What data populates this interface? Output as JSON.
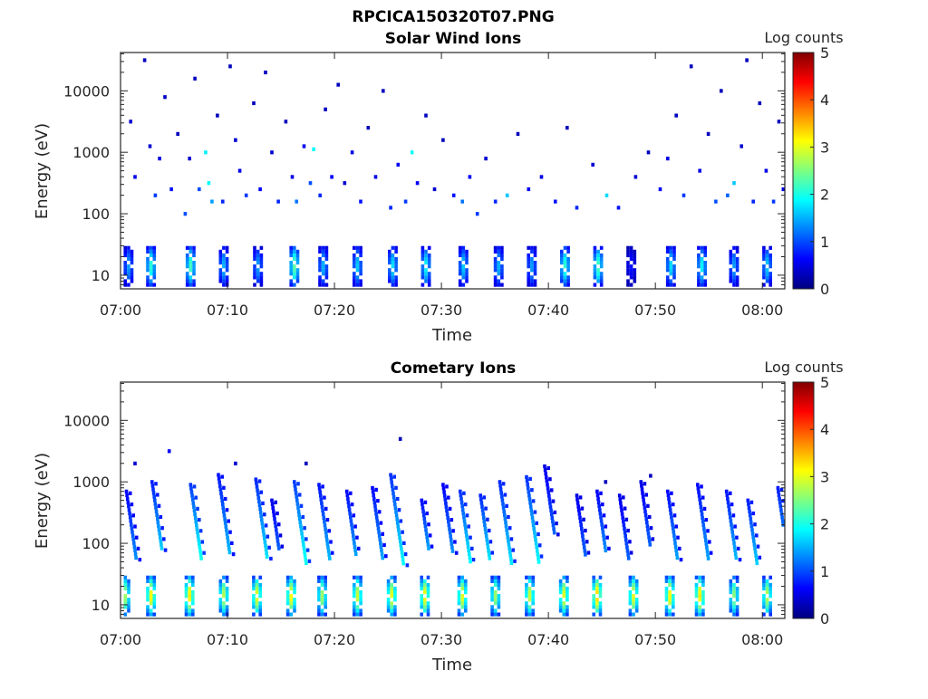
{
  "figure_title": "RPCICA150320T07.PNG",
  "chart_data": [
    {
      "type": "heatmap",
      "title": "Solar Wind Ions",
      "xlabel": "Time",
      "ylabel": "Energy (eV)",
      "xlim_minutes_after_0700": [
        0,
        62.1
      ],
      "ylim": [
        6,
        42000
      ],
      "yscale": "log",
      "xticks": [
        "07:00",
        "07:10",
        "07:20",
        "07:30",
        "07:40",
        "07:50",
        "08:00"
      ],
      "yticks": [
        "10",
        "100",
        "1000",
        "10000"
      ],
      "colorbar": {
        "label": "Log counts",
        "range": [
          0,
          5
        ],
        "ticks": [
          "0",
          "1",
          "2",
          "3",
          "4",
          "5"
        ],
        "colormap": "jet"
      },
      "low_energy_bursts": {
        "energy_range_eV": [
          7,
          28
        ],
        "times_min": [
          0.6,
          2.7,
          6.4,
          9.5,
          12.7,
          16.1,
          18.8,
          22.0,
          25.3,
          28.4,
          31.9,
          35.2,
          38.3,
          41.4,
          44.5,
          47.6,
          51.3,
          54.2,
          57.2,
          60.3
        ],
        "peak_log_counts": [
          1.2,
          1.8,
          1.9,
          1.3,
          1.2,
          2.0,
          1.3,
          1.4,
          1.5,
          1.6,
          1.4,
          1.3,
          1.2,
          1.8,
          1.9,
          0.6,
          1.5,
          1.6,
          1.2,
          1.4
        ]
      },
      "cells": [
        [
          0.8,
          3.5,
          0.4
        ],
        [
          1.2,
          2.6,
          0.5
        ],
        [
          2.1,
          4.5,
          0.3
        ],
        [
          2.6,
          3.1,
          0.4
        ],
        [
          3.1,
          2.3,
          0.9
        ],
        [
          3.5,
          2.9,
          0.5
        ],
        [
          4.0,
          3.9,
          0.3
        ],
        [
          4.6,
          2.4,
          0.7
        ],
        [
          5.2,
          3.3,
          0.3
        ],
        [
          5.9,
          2.0,
          1.0
        ],
        [
          6.3,
          2.9,
          0.4
        ],
        [
          6.8,
          4.2,
          0.3
        ],
        [
          7.2,
          2.4,
          1.0
        ],
        [
          7.8,
          3.0,
          1.8
        ],
        [
          8.1,
          2.5,
          1.9
        ],
        [
          8.4,
          2.2,
          1.4
        ],
        [
          8.9,
          3.6,
          0.3
        ],
        [
          9.4,
          2.2,
          0.8
        ],
        [
          10.1,
          4.4,
          0.3
        ],
        [
          10.6,
          3.2,
          0.4
        ],
        [
          11.0,
          2.7,
          0.5
        ],
        [
          11.6,
          2.3,
          0.9
        ],
        [
          12.3,
          3.8,
          0.3
        ],
        [
          12.9,
          2.4,
          0.6
        ],
        [
          13.4,
          4.3,
          0.3
        ],
        [
          14.0,
          3.0,
          0.4
        ],
        [
          14.6,
          2.2,
          0.8
        ],
        [
          15.3,
          3.5,
          0.3
        ],
        [
          15.9,
          2.6,
          0.5
        ],
        [
          16.3,
          2.2,
          1.2
        ],
        [
          17.0,
          3.1,
          0.5
        ],
        [
          17.6,
          2.5,
          1.0
        ],
        [
          17.9,
          3.05,
          1.9
        ],
        [
          18.5,
          2.3,
          0.8
        ],
        [
          19.0,
          3.7,
          0.3
        ],
        [
          19.6,
          2.6,
          0.6
        ],
        [
          20.2,
          4.1,
          0.3
        ],
        [
          20.8,
          2.5,
          0.4
        ],
        [
          21.5,
          3.0,
          0.5
        ],
        [
          22.3,
          2.2,
          0.7
        ],
        [
          23.0,
          3.4,
          0.3
        ],
        [
          23.7,
          2.6,
          0.5
        ],
        [
          24.4,
          4.0,
          0.3
        ],
        [
          25.1,
          2.1,
          0.8
        ],
        [
          25.8,
          2.8,
          0.6
        ],
        [
          26.5,
          2.2,
          0.9
        ],
        [
          27.1,
          3.0,
          1.9
        ],
        [
          27.6,
          2.5,
          0.6
        ],
        [
          28.4,
          3.6,
          0.3
        ],
        [
          29.2,
          2.4,
          0.4
        ],
        [
          30.0,
          3.2,
          0.3
        ],
        [
          31.0,
          2.3,
          0.7
        ],
        [
          31.8,
          2.2,
          1.2
        ],
        [
          32.5,
          2.6,
          0.6
        ],
        [
          33.2,
          2.0,
          0.9
        ],
        [
          34.0,
          2.9,
          0.4
        ],
        [
          34.9,
          2.2,
          0.8
        ],
        [
          36.0,
          2.3,
          1.6
        ],
        [
          37.0,
          3.3,
          0.3
        ],
        [
          38.0,
          2.4,
          0.6
        ],
        [
          39.2,
          2.6,
          0.5
        ],
        [
          40.5,
          2.2,
          0.7
        ],
        [
          41.6,
          3.4,
          0.3
        ],
        [
          42.5,
          2.1,
          0.8
        ],
        [
          44.0,
          2.8,
          0.4
        ],
        [
          45.3,
          2.3,
          1.7
        ],
        [
          46.4,
          2.1,
          0.7
        ],
        [
          48.0,
          2.6,
          0.4
        ],
        [
          49.2,
          3.0,
          0.3
        ],
        [
          50.3,
          2.4,
          0.6
        ],
        [
          51.0,
          2.9,
          0.5
        ],
        [
          51.8,
          3.6,
          0.3
        ],
        [
          52.5,
          2.3,
          0.9
        ],
        [
          53.2,
          4.4,
          0.3
        ],
        [
          54.0,
          2.7,
          0.5
        ],
        [
          54.8,
          3.3,
          0.3
        ],
        [
          55.5,
          2.2,
          1.0
        ],
        [
          56.0,
          4.0,
          0.3
        ],
        [
          56.6,
          2.3,
          1.1
        ],
        [
          57.2,
          2.5,
          1.6
        ],
        [
          57.9,
          3.1,
          0.4
        ],
        [
          58.4,
          4.5,
          0.3
        ],
        [
          59.0,
          2.2,
          0.8
        ],
        [
          59.6,
          3.8,
          0.3
        ],
        [
          60.2,
          2.7,
          0.5
        ],
        [
          60.9,
          2.2,
          0.9
        ],
        [
          61.4,
          3.5,
          0.3
        ],
        [
          61.8,
          2.4,
          0.5
        ]
      ]
    },
    {
      "type": "heatmap",
      "title": "Cometary Ions",
      "xlabel": "Time",
      "ylabel": "Energy (eV)",
      "xlim_minutes_after_0700": [
        0,
        62.1
      ],
      "ylim": [
        6,
        42000
      ],
      "yscale": "log",
      "xticks": [
        "07:00",
        "07:10",
        "07:20",
        "07:30",
        "07:40",
        "07:50",
        "08:00"
      ],
      "yticks": [
        "10",
        "100",
        "1000",
        "10000"
      ],
      "colorbar": {
        "label": "Log counts",
        "range": [
          0,
          5
        ],
        "ticks": [
          "0",
          "1",
          "2",
          "3",
          "4",
          "5"
        ],
        "colormap": "jet"
      },
      "low_energy_bursts": {
        "energy_range_eV": [
          7,
          28
        ],
        "times_min": [
          0.3,
          2.7,
          6.3,
          9.5,
          12.6,
          15.8,
          18.7,
          22.0,
          25.2,
          28.3,
          31.8,
          34.9,
          38.1,
          41.3,
          44.4,
          47.8,
          51.2,
          54.0,
          57.2,
          60.3
        ],
        "peak_log_counts": [
          2.3,
          2.7,
          2.8,
          2.4,
          2.6,
          2.7,
          2.3,
          2.5,
          2.6,
          2.7,
          2.6,
          2.3,
          2.5,
          2.6,
          2.9,
          2.6,
          2.7,
          2.8,
          2.2,
          2.4
        ]
      },
      "dispersion_streaks": [
        [
          0.4,
          700,
          60,
          1.2
        ],
        [
          2.8,
          1000,
          80,
          1.5
        ],
        [
          6.4,
          900,
          60,
          1.8
        ],
        [
          9.0,
          1300,
          70,
          1.4
        ],
        [
          12.5,
          1100,
          60,
          1.6
        ],
        [
          14.0,
          500,
          80,
          1.0
        ],
        [
          16.1,
          1000,
          50,
          1.8
        ],
        [
          18.4,
          900,
          60,
          1.4
        ],
        [
          21.0,
          700,
          70,
          1.3
        ],
        [
          23.4,
          800,
          60,
          1.3
        ],
        [
          25.1,
          1300,
          50,
          1.7
        ],
        [
          28.0,
          500,
          80,
          1.3
        ],
        [
          30.0,
          900,
          80,
          1.2
        ],
        [
          31.6,
          700,
          50,
          1.7
        ],
        [
          33.5,
          600,
          60,
          1.6
        ],
        [
          35.3,
          1000,
          50,
          1.6
        ],
        [
          37.8,
          1200,
          50,
          1.7
        ],
        [
          39.5,
          1800,
          150,
          1.0
        ],
        [
          42.5,
          600,
          70,
          1.0
        ],
        [
          44.4,
          700,
          80,
          1.2
        ],
        [
          46.5,
          600,
          60,
          1.0
        ],
        [
          48.5,
          1000,
          90,
          1.0
        ],
        [
          51.0,
          700,
          60,
          1.3
        ],
        [
          53.8,
          900,
          60,
          1.3
        ],
        [
          56.5,
          700,
          60,
          1.4
        ],
        [
          58.5,
          500,
          50,
          1.5
        ],
        [
          61.3,
          800,
          40,
          1.5
        ]
      ],
      "cells": [
        [
          4.4,
          3.5,
          0.6
        ],
        [
          26.0,
          3.7,
          0.3
        ],
        [
          1.2,
          3.3,
          0.4
        ],
        [
          10.6,
          3.3,
          0.4
        ],
        [
          17.2,
          3.3,
          0.3
        ],
        [
          45.2,
          3.0,
          0.3
        ],
        [
          49.4,
          3.1,
          0.3
        ]
      ]
    }
  ]
}
